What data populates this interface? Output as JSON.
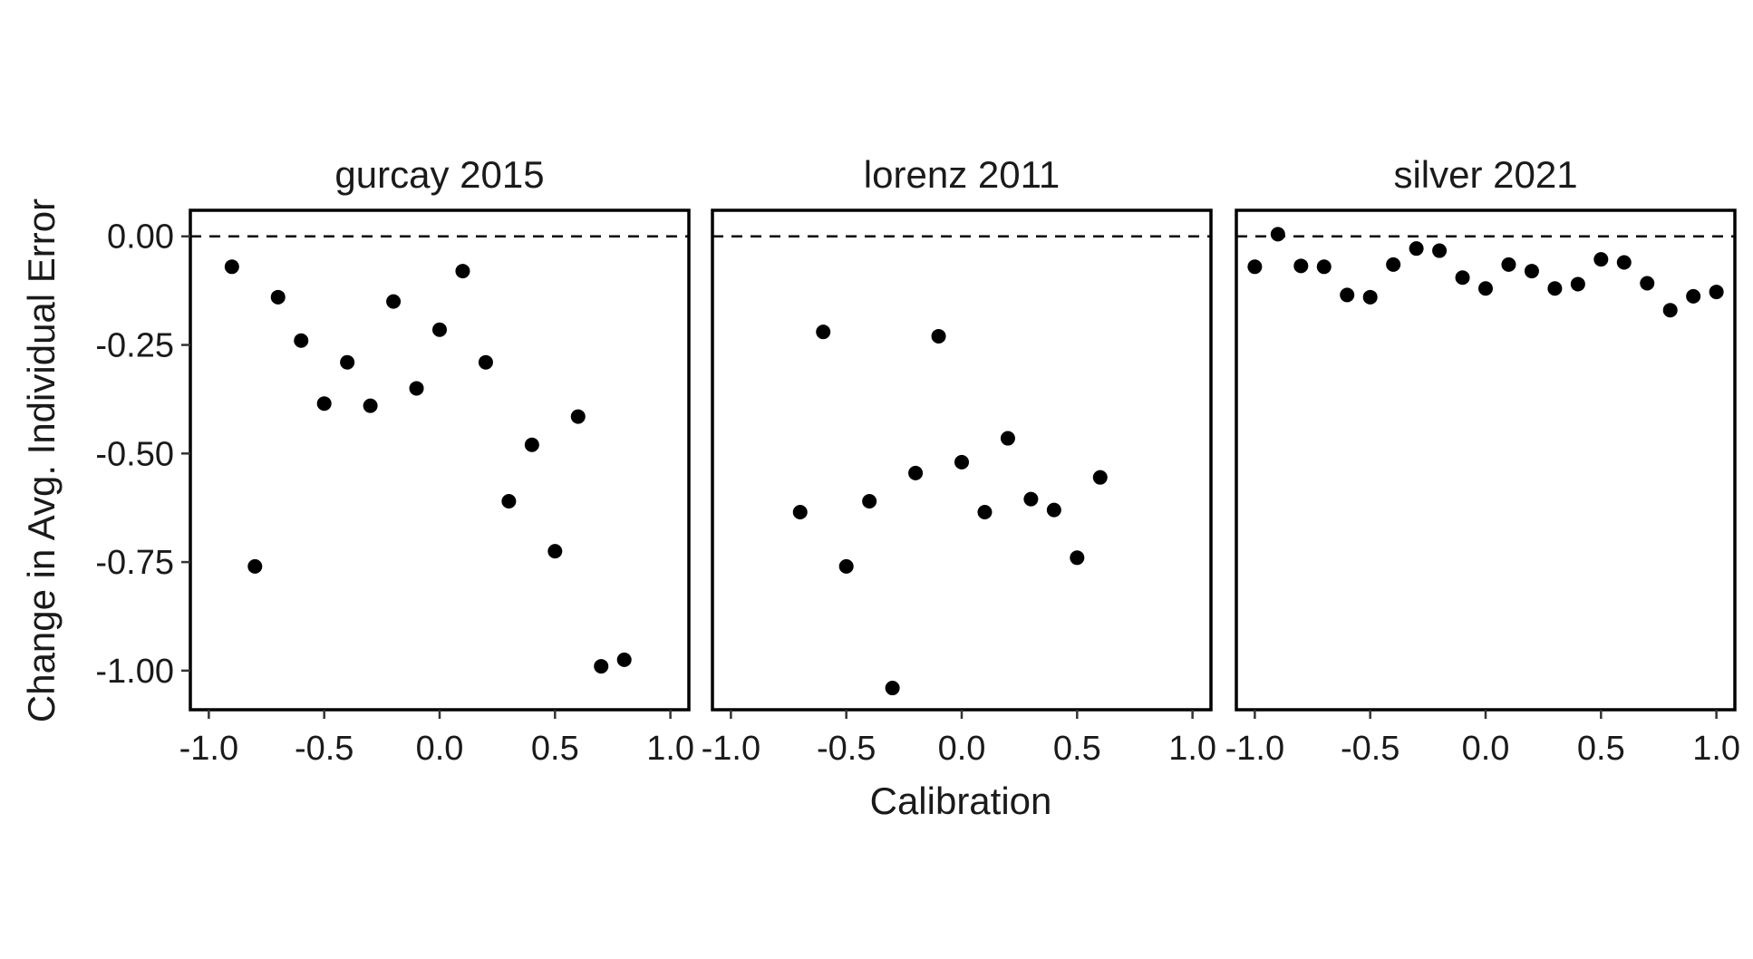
{
  "chart_data": {
    "type": "scatter",
    "ylabel": "Change in Avg. Individual Error",
    "xlabel": "Calibration",
    "xlim": [
      -1.08,
      1.08
    ],
    "ylim": [
      -1.09,
      0.06
    ],
    "x_ticks": [
      -1.0,
      -0.5,
      0.0,
      0.5,
      1.0
    ],
    "x_tick_labels": [
      "-1.0",
      "-0.5",
      "0.0",
      "0.5",
      "1.0"
    ],
    "y_ticks": [
      0.0,
      -0.25,
      -0.5,
      -0.75,
      -1.0
    ],
    "y_tick_labels": [
      "0.00",
      "-0.25",
      "-0.50",
      "-0.75",
      "-1.00"
    ],
    "reference_line": {
      "y": 0.0,
      "style": "dashed"
    },
    "grid": false,
    "marker_color": "#000000",
    "panels": [
      {
        "title": "gurcay 2015",
        "points": [
          {
            "x": -0.9,
            "y": -0.07
          },
          {
            "x": -0.8,
            "y": -0.76
          },
          {
            "x": -0.7,
            "y": -0.14
          },
          {
            "x": -0.6,
            "y": -0.24
          },
          {
            "x": -0.5,
            "y": -0.385
          },
          {
            "x": -0.4,
            "y": -0.29
          },
          {
            "x": -0.3,
            "y": -0.39
          },
          {
            "x": -0.2,
            "y": -0.15
          },
          {
            "x": -0.1,
            "y": -0.35
          },
          {
            "x": 0.0,
            "y": -0.215
          },
          {
            "x": 0.1,
            "y": -0.08
          },
          {
            "x": 0.2,
            "y": -0.29
          },
          {
            "x": 0.3,
            "y": -0.61
          },
          {
            "x": 0.4,
            "y": -0.48
          },
          {
            "x": 0.5,
            "y": -0.725
          },
          {
            "x": 0.6,
            "y": -0.415
          },
          {
            "x": 0.7,
            "y": -0.99
          },
          {
            "x": 0.8,
            "y": -0.975
          }
        ]
      },
      {
        "title": "lorenz 2011",
        "points": [
          {
            "x": -0.7,
            "y": -0.635
          },
          {
            "x": -0.6,
            "y": -0.22
          },
          {
            "x": -0.5,
            "y": -0.76
          },
          {
            "x": -0.4,
            "y": -0.61
          },
          {
            "x": -0.3,
            "y": -1.04
          },
          {
            "x": -0.2,
            "y": -0.545
          },
          {
            "x": -0.1,
            "y": -0.23
          },
          {
            "x": 0.0,
            "y": -0.52
          },
          {
            "x": 0.1,
            "y": -0.635
          },
          {
            "x": 0.2,
            "y": -0.465
          },
          {
            "x": 0.3,
            "y": -0.605
          },
          {
            "x": 0.4,
            "y": -0.63
          },
          {
            "x": 0.5,
            "y": -0.74
          },
          {
            "x": 0.6,
            "y": -0.555
          }
        ]
      },
      {
        "title": "silver 2021",
        "points": [
          {
            "x": -1.0,
            "y": -0.07
          },
          {
            "x": -0.9,
            "y": 0.005
          },
          {
            "x": -0.8,
            "y": -0.068
          },
          {
            "x": -0.7,
            "y": -0.07
          },
          {
            "x": -0.6,
            "y": -0.135
          },
          {
            "x": -0.5,
            "y": -0.14
          },
          {
            "x": -0.4,
            "y": -0.065
          },
          {
            "x": -0.3,
            "y": -0.028
          },
          {
            "x": -0.2,
            "y": -0.033
          },
          {
            "x": -0.1,
            "y": -0.095
          },
          {
            "x": 0.0,
            "y": -0.12
          },
          {
            "x": 0.1,
            "y": -0.065
          },
          {
            "x": 0.2,
            "y": -0.08
          },
          {
            "x": 0.3,
            "y": -0.12
          },
          {
            "x": 0.4,
            "y": -0.11
          },
          {
            "x": 0.5,
            "y": -0.053
          },
          {
            "x": 0.6,
            "y": -0.06
          },
          {
            "x": 0.7,
            "y": -0.108
          },
          {
            "x": 0.8,
            "y": -0.17
          },
          {
            "x": 0.9,
            "y": -0.138
          },
          {
            "x": 1.0,
            "y": -0.128
          }
        ]
      }
    ]
  }
}
